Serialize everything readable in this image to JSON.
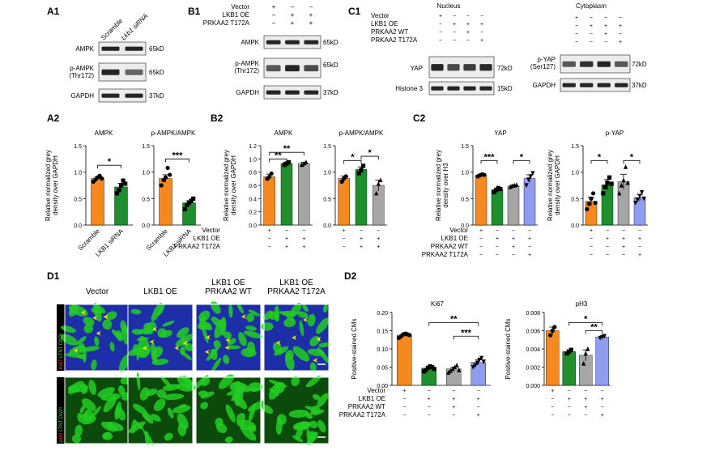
{
  "panel_labels": {
    "A1": "A1",
    "A2": "A2",
    "B1": "B1",
    "B2": "B2",
    "C1": "C1",
    "C2": "C2",
    "D1": "D1",
    "D2": "D2"
  },
  "colors": {
    "orange": "#F5891F",
    "green": "#1E8F2C",
    "grey": "#A6A6A6",
    "lavender": "#8F9CF0",
    "blot": "#1a1a1a",
    "cells": "#22cc22",
    "nuclei": "#1d2ea8"
  },
  "a1": {
    "lanes": [
      "Scramble",
      "Lkb1 siRNA"
    ],
    "rows": [
      {
        "name": "AMPK",
        "size": "65kD"
      },
      {
        "name": "p-AMPK\n(Thr172)",
        "size": "65kD"
      },
      {
        "name": "GAPDH",
        "size": "37kD"
      }
    ]
  },
  "b1": {
    "conditions": [
      {
        "label": "Vector",
        "marks": [
          "+",
          "−",
          "−"
        ]
      },
      {
        "label": "LKB1 OE",
        "marks": [
          "−",
          "+",
          "+"
        ]
      },
      {
        "label": "PRKAA2 T172A",
        "marks": [
          "−",
          "+",
          "+"
        ]
      }
    ],
    "rows": [
      {
        "name": "AMPK",
        "size": "65kD"
      },
      {
        "name": "p-AMPK\n(Thr172)",
        "size": "65kD"
      },
      {
        "name": "GAPDH",
        "size": "37kD"
      }
    ]
  },
  "c1": {
    "nucleus_title": "Nucleus",
    "cytoplasm_title": "Cytoplasm",
    "conditions": [
      {
        "label": "Vector",
        "marks": [
          "+",
          "−",
          "−",
          "−"
        ]
      },
      {
        "label": "LKB1 OE",
        "marks": [
          "−",
          "+",
          "+",
          "+"
        ]
      },
      {
        "label": "PRKAA2 WT",
        "marks": [
          "−",
          "−",
          "+",
          "−"
        ]
      },
      {
        "label": "PRKAA2 T172A",
        "marks": [
          "−",
          "−",
          "−",
          "+"
        ]
      }
    ],
    "nucleus_rows": [
      {
        "name": "YAP",
        "size": "72kD"
      },
      {
        "name": "Histone 3",
        "size": "15kD"
      }
    ],
    "cyto_rows": [
      {
        "name": "p-YAP\n(Ser127)",
        "size": "72kD"
      },
      {
        "name": "GAPDH",
        "size": "37kD"
      }
    ]
  },
  "d1": {
    "columns": [
      "Vector",
      "LKB1 OE",
      "LKB1 OE\nPRKAA2 WT",
      "LKB1 OE\nPRKAA2 T172A"
    ],
    "rows": [
      {
        "stain": "Ki67",
        "rest": " cTNT DAPI"
      },
      {
        "stain": "pH3",
        "rest": " cTNT DAPI"
      }
    ]
  },
  "chart_data": [
    {
      "id": "A2-ampk",
      "type": "bar",
      "title": "AMPK",
      "ylabel": "Relative normalized grey\ndensity over GAPDH",
      "ylim": [
        0,
        1.5
      ],
      "yticks": [
        "0.0",
        "0.5",
        "1.0",
        "1.5"
      ],
      "categories": [
        "Scramble",
        "LKB1 siRNA"
      ],
      "values": [
        0.88,
        0.72
      ],
      "errors": [
        0.03,
        0.07
      ],
      "colors": [
        "orange",
        "green"
      ],
      "points": [
        [
          0.82,
          0.86,
          0.9,
          0.93,
          0.88
        ],
        [
          0.6,
          0.66,
          0.75,
          0.84,
          0.78
        ]
      ],
      "markers": [
        "circle",
        "square"
      ],
      "sig": [
        {
          "from": 0,
          "to": 1,
          "text": "*",
          "y": 1.13
        }
      ],
      "xlabels_rotated": true
    },
    {
      "id": "A2-pampk",
      "type": "bar",
      "title": "p-AMPK/AMPK",
      "ylabel": "",
      "ylim": [
        0,
        1.5
      ],
      "yticks": [
        "0.0",
        "0.5",
        "1.0",
        "1.5"
      ],
      "categories": [
        "Scramble",
        "LKB1 siRNA"
      ],
      "values": [
        0.88,
        0.42
      ],
      "errors": [
        0.07,
        0.04
      ],
      "colors": [
        "orange",
        "green"
      ],
      "points": [
        [
          0.75,
          0.85,
          0.9,
          1.08,
          0.95
        ],
        [
          0.3,
          0.38,
          0.42,
          0.46,
          0.5
        ]
      ],
      "markers": [
        "circle",
        "square"
      ],
      "sig": [
        {
          "from": 0,
          "to": 1,
          "text": "***",
          "y": 1.25
        }
      ],
      "xlabels_rotated": true
    },
    {
      "id": "B2-ampk",
      "type": "bar",
      "title": "AMPK",
      "ylabel": "Relative normalized grey\ndensity over GAPDH",
      "ylim": [
        0,
        1.2
      ],
      "yticks": [
        "0.0",
        "0.2",
        "0.4",
        "0.6",
        "0.8",
        "1.0",
        "1.2"
      ],
      "categories": [
        "1",
        "2",
        "3"
      ],
      "values": [
        0.73,
        0.93,
        0.93
      ],
      "errors": [
        0.04,
        0.02,
        0.02
      ],
      "colors": [
        "orange",
        "green",
        "grey"
      ],
      "points": [
        [
          0.7,
          0.73,
          0.78
        ],
        [
          0.91,
          0.93,
          0.95
        ],
        [
          0.91,
          0.93,
          0.95
        ]
      ],
      "markers": [
        "circle",
        "square",
        "triangle"
      ],
      "sig": [
        {
          "from": 0,
          "to": 1,
          "text": "**",
          "y": 1.0
        },
        {
          "from": 0,
          "to": 2,
          "text": "**",
          "y": 1.1
        }
      ],
      "condition_rows": [
        "Vector",
        "LKB1 OE",
        "PRKAA2 T172A"
      ],
      "condition_marks": [
        [
          "+",
          "−",
          "−"
        ],
        [
          "−",
          "+",
          "+"
        ],
        [
          "−",
          "+",
          "+"
        ]
      ]
    },
    {
      "id": "B2-pampk",
      "type": "bar",
      "title": "p-AMPK/AMPK",
      "ylabel": "",
      "ylim": [
        0,
        1.5
      ],
      "yticks": [
        "0.0",
        "0.5",
        "1.0",
        "1.5"
      ],
      "categories": [
        "1",
        "2",
        "3"
      ],
      "values": [
        0.88,
        1.05,
        0.75
      ],
      "errors": [
        0.05,
        0.05,
        0.1
      ],
      "colors": [
        "orange",
        "green",
        "grey"
      ],
      "points": [
        [
          0.82,
          0.88,
          0.92
        ],
        [
          0.98,
          1.04,
          1.12
        ],
        [
          0.6,
          0.78,
          0.85
        ]
      ],
      "markers": [
        "circle",
        "square",
        "triangle"
      ],
      "sig": [
        {
          "from": 0,
          "to": 1,
          "text": "*",
          "y": 1.22
        },
        {
          "from": 1,
          "to": 2,
          "text": "*",
          "y": 1.3
        }
      ],
      "condition_rows": [
        "Vector",
        "LKB1 OE",
        "PRKAA2 T172A"
      ],
      "condition_marks": [
        [
          "+",
          "−",
          "−"
        ],
        [
          "−",
          "+",
          "+"
        ],
        [
          "−",
          "+",
          "+"
        ]
      ]
    },
    {
      "id": "C2-yap",
      "type": "bar",
      "title": "YAP",
      "ylabel": "Relative normalized grey\ndensity over H3",
      "ylim": [
        0,
        1.5
      ],
      "yticks": [
        "0.0",
        "0.5",
        "1.0",
        "1.5"
      ],
      "categories": [
        "1",
        "2",
        "3",
        "4"
      ],
      "values": [
        0.94,
        0.67,
        0.74,
        0.88
      ],
      "errors": [
        0.02,
        0.03,
        0.02,
        0.07
      ],
      "colors": [
        "orange",
        "green",
        "grey",
        "lavender"
      ],
      "points": [
        [
          0.92,
          0.94,
          0.96,
          0.95
        ],
        [
          0.62,
          0.66,
          0.7,
          0.68
        ],
        [
          0.72,
          0.74,
          0.75,
          0.76
        ],
        [
          0.75,
          0.86,
          0.92,
          0.98
        ]
      ],
      "markers": [
        "circle",
        "square",
        "triangle",
        "invtriangle"
      ],
      "sig": [
        {
          "from": 0,
          "to": 1,
          "text": "***",
          "y": 1.22
        },
        {
          "from": 2,
          "to": 3,
          "text": "*",
          "y": 1.22
        }
      ],
      "condition_rows": [
        "Vector",
        "LKB1 OE",
        "PRKAA2 WT",
        "PRKAA2 T172A"
      ],
      "condition_marks": [
        [
          "+",
          "−",
          "−",
          "−"
        ],
        [
          "−",
          "+",
          "+",
          "+"
        ],
        [
          "−",
          "−",
          "+",
          "−"
        ],
        [
          "−",
          "−",
          "−",
          "+"
        ]
      ]
    },
    {
      "id": "C2-pyap",
      "type": "bar",
      "title": "p-YAP",
      "ylabel": "Relative normalized grey\ndensity over GAPDH",
      "ylim": [
        0,
        1.5
      ],
      "yticks": [
        "0.0",
        "0.5",
        "1.0",
        "1.5"
      ],
      "categories": [
        "1",
        "2",
        "3",
        "4"
      ],
      "values": [
        0.45,
        0.76,
        0.82,
        0.52
      ],
      "errors": [
        0.08,
        0.1,
        0.14,
        0.06
      ],
      "colors": [
        "orange",
        "green",
        "grey",
        "lavender"
      ],
      "points": [
        [
          0.3,
          0.4,
          0.5,
          0.6,
          0.42
        ],
        [
          0.6,
          0.72,
          0.8,
          0.9,
          0.78
        ],
        [
          0.6,
          0.75,
          0.85,
          1.1,
          0.8
        ],
        [
          0.42,
          0.48,
          0.55,
          0.62,
          0.5
        ]
      ],
      "markers": [
        "circle",
        "square",
        "triangle",
        "invtriangle"
      ],
      "sig": [
        {
          "from": 0,
          "to": 1,
          "text": "*",
          "y": 1.22
        },
        {
          "from": 2,
          "to": 3,
          "text": "*",
          "y": 1.22
        }
      ],
      "condition_rows": [
        "Vector",
        "LKB1 OE",
        "PRKAA2 WT",
        "PRKAA2 T172A"
      ],
      "condition_marks": [
        [
          "+",
          "−",
          "−",
          "−"
        ],
        [
          "−",
          "+",
          "+",
          "+"
        ],
        [
          "−",
          "−",
          "+",
          "−"
        ],
        [
          "−",
          "−",
          "−",
          "+"
        ]
      ]
    },
    {
      "id": "D2-ki67",
      "type": "bar",
      "title": "Ki67",
      "ylabel": "Positive-stained CMs",
      "ylim": [
        0,
        0.2
      ],
      "yticks": [
        "0.00",
        "0.05",
        "0.10",
        "0.15",
        "0.20"
      ],
      "categories": [
        "1",
        "2",
        "3",
        "4"
      ],
      "values": [
        0.138,
        0.047,
        0.045,
        0.063
      ],
      "errors": [
        0.004,
        0.004,
        0.005,
        0.007
      ],
      "colors": [
        "orange",
        "green",
        "grey",
        "lavender"
      ],
      "points": [
        [
          0.13,
          0.135,
          0.14,
          0.142,
          0.14,
          0.138
        ],
        [
          0.038,
          0.042,
          0.048,
          0.052,
          0.05,
          0.045
        ],
        [
          0.035,
          0.04,
          0.045,
          0.05,
          0.055,
          0.042
        ],
        [
          0.05,
          0.055,
          0.062,
          0.07,
          0.075,
          0.065
        ]
      ],
      "markers": [
        "circle",
        "square",
        "triangle",
        "invtriangle"
      ],
      "sig": [
        {
          "from": 1,
          "to": 3,
          "text": "**",
          "y": 0.172
        },
        {
          "from": 2,
          "to": 3,
          "text": "***",
          "y": 0.135
        }
      ],
      "condition_rows": [
        "Vector",
        "LKB1 OE",
        "PRKAA2 WT",
        "PRKAA2 T172A"
      ],
      "condition_marks": [
        [
          "+",
          "−",
          "−",
          "−"
        ],
        [
          "−",
          "+",
          "+",
          "+"
        ],
        [
          "−",
          "−",
          "+",
          "−"
        ],
        [
          "−",
          "−",
          "−",
          "+"
        ]
      ]
    },
    {
      "id": "D2-ph3",
      "type": "bar",
      "title": "pH3",
      "ylabel": "Positive-stained CMs",
      "ylim": [
        0,
        0.008
      ],
      "yticks": [
        "0.000",
        "0.002",
        "0.004",
        "0.006",
        "0.008"
      ],
      "categories": [
        "1",
        "2",
        "3",
        "4"
      ],
      "values": [
        0.006,
        0.0037,
        0.0033,
        0.0053
      ],
      "errors": [
        0.0004,
        0.0002,
        0.0006,
        0.0001
      ],
      "colors": [
        "orange",
        "green",
        "grey",
        "lavender"
      ],
      "points": [
        [
          0.0055,
          0.006,
          0.0064
        ],
        [
          0.0035,
          0.0037,
          0.0039
        ],
        [
          0.0024,
          0.0035,
          0.004
        ],
        [
          0.0052,
          0.0053,
          0.0054
        ]
      ],
      "markers": [
        "circle",
        "square",
        "triangle",
        "invtriangle"
      ],
      "sig": [
        {
          "from": 1,
          "to": 3,
          "text": "*",
          "y": 0.0069
        },
        {
          "from": 2,
          "to": 3,
          "text": "**",
          "y": 0.006
        }
      ],
      "condition_rows": [
        "Vector",
        "LKB1 OE",
        "PRKAA2 WT",
        "PRKAA2 T172A"
      ],
      "condition_marks": [
        [
          "+",
          "−",
          "−",
          "−"
        ],
        [
          "−",
          "+",
          "+",
          "+"
        ],
        [
          "−",
          "−",
          "+",
          "−"
        ],
        [
          "−",
          "−",
          "−",
          "+"
        ]
      ]
    }
  ]
}
